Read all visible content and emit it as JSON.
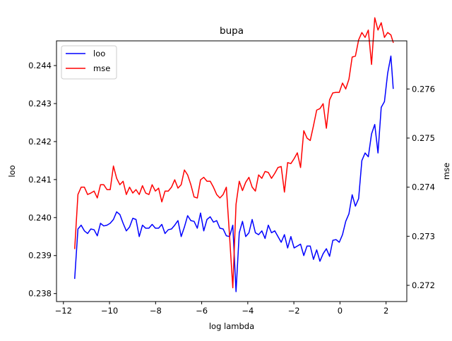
{
  "chart_data": {
    "type": "line",
    "title": "bupa",
    "xlabel": "log lambda",
    "ylabel_left": "loo",
    "ylabel_right": "mse",
    "xlim": [
      -12.3,
      2.9
    ],
    "ylim_left": [
      0.23779,
      0.24465
    ],
    "ylim_right": [
      0.27167,
      0.27698
    ],
    "x_ticks": [
      -12,
      -10,
      -8,
      -6,
      -4,
      -2,
      0,
      2
    ],
    "x_tick_labels": [
      "−12",
      "−10",
      "−8",
      "−6",
      "−4",
      "−2",
      "0",
      "2"
    ],
    "y_left_ticks": [
      0.238,
      0.239,
      0.24,
      0.241,
      0.242,
      0.243,
      0.244
    ],
    "y_left_tick_labels": [
      "0.238",
      "0.239",
      "0.240",
      "0.241",
      "0.242",
      "0.243",
      "0.244"
    ],
    "y_right_ticks": [
      0.272,
      0.273,
      0.274,
      0.275,
      0.276
    ],
    "y_right_tick_labels": [
      "0.272",
      "0.273",
      "0.274",
      "0.275",
      "0.276"
    ],
    "legend_position": "upper left",
    "series": [
      {
        "name": "loo",
        "axis": "left",
        "color": "#0000ff",
        "x": [
          -11.51,
          -11.37,
          -11.23,
          -11.09,
          -10.95,
          -10.81,
          -10.67,
          -10.53,
          -10.39,
          -10.25,
          -10.11,
          -9.97,
          -9.83,
          -9.69,
          -9.55,
          -9.41,
          -9.27,
          -9.13,
          -8.99,
          -8.85,
          -8.71,
          -8.57,
          -8.43,
          -8.29,
          -8.15,
          -8.01,
          -7.87,
          -7.73,
          -7.59,
          -7.45,
          -7.31,
          -7.17,
          -7.03,
          -6.89,
          -6.75,
          -6.61,
          -6.47,
          -6.33,
          -6.19,
          -6.05,
          -5.91,
          -5.77,
          -5.63,
          -5.49,
          -5.35,
          -5.21,
          -5.07,
          -4.93,
          -4.79,
          -4.65,
          -4.51,
          -4.37,
          -4.23,
          -4.09,
          -3.95,
          -3.81,
          -3.67,
          -3.53,
          -3.39,
          -3.25,
          -3.11,
          -2.97,
          -2.83,
          -2.69,
          -2.55,
          -2.41,
          -2.27,
          -2.13,
          -1.99,
          -1.85,
          -1.71,
          -1.57,
          -1.43,
          -1.29,
          -1.15,
          -1.01,
          -0.87,
          -0.73,
          -0.59,
          -0.45,
          -0.31,
          -0.17,
          -0.03,
          0.11,
          0.25,
          0.39,
          0.53,
          0.67,
          0.81,
          0.95,
          1.09,
          1.23,
          1.37,
          1.51,
          1.65,
          1.79,
          1.93,
          2.07,
          2.21,
          2.31
        ],
        "y": [
          0.2384,
          0.2397,
          0.2398,
          0.23965,
          0.23958,
          0.2397,
          0.23968,
          0.23952,
          0.23985,
          0.23978,
          0.2398,
          0.23985,
          0.23995,
          0.24015,
          0.24008,
          0.23985,
          0.23965,
          0.23975,
          0.23998,
          0.23995,
          0.2395,
          0.2398,
          0.23972,
          0.23972,
          0.23982,
          0.23972,
          0.23972,
          0.23982,
          0.23958,
          0.23968,
          0.2397,
          0.2398,
          0.23992,
          0.2395,
          0.23975,
          0.24005,
          0.23992,
          0.2399,
          0.23972,
          0.24012,
          0.23965,
          0.23995,
          0.24002,
          0.23988,
          0.23992,
          0.23972,
          0.2397,
          0.23952,
          0.2395,
          0.2398,
          0.23805,
          0.2396,
          0.2399,
          0.2395,
          0.2396,
          0.23995,
          0.2396,
          0.23955,
          0.23965,
          0.23945,
          0.2398,
          0.2396,
          0.23965,
          0.2395,
          0.23935,
          0.23955,
          0.2392,
          0.2395,
          0.2392,
          0.23925,
          0.2393,
          0.239,
          0.23925,
          0.23925,
          0.2389,
          0.23915,
          0.23885,
          0.23905,
          0.23918,
          0.23898,
          0.2394,
          0.23942,
          0.23935,
          0.23955,
          0.2399,
          0.2401,
          0.2406,
          0.2403,
          0.2405,
          0.2415,
          0.2417,
          0.2416,
          0.2422,
          0.24245,
          0.2417,
          0.2429,
          0.24305,
          0.2438,
          0.24425,
          0.2434
        ]
      },
      {
        "name": "mse",
        "axis": "right",
        "color": "#ff0000",
        "x": [
          -11.51,
          -11.37,
          -11.23,
          -11.09,
          -10.95,
          -10.81,
          -10.67,
          -10.53,
          -10.39,
          -10.25,
          -10.11,
          -9.97,
          -9.83,
          -9.69,
          -9.55,
          -9.41,
          -9.27,
          -9.13,
          -8.99,
          -8.85,
          -8.71,
          -8.57,
          -8.43,
          -8.29,
          -8.15,
          -8.01,
          -7.87,
          -7.73,
          -7.59,
          -7.45,
          -7.31,
          -7.17,
          -7.03,
          -6.89,
          -6.75,
          -6.61,
          -6.47,
          -6.33,
          -6.19,
          -6.05,
          -5.91,
          -5.77,
          -5.63,
          -5.49,
          -5.35,
          -5.21,
          -5.07,
          -4.93,
          -4.79,
          -4.65,
          -4.51,
          -4.37,
          -4.23,
          -4.09,
          -3.95,
          -3.81,
          -3.67,
          -3.53,
          -3.39,
          -3.25,
          -3.11,
          -2.97,
          -2.83,
          -2.69,
          -2.55,
          -2.41,
          -2.27,
          -2.13,
          -1.99,
          -1.85,
          -1.71,
          -1.57,
          -1.43,
          -1.29,
          -1.15,
          -1.01,
          -0.87,
          -0.73,
          -0.59,
          -0.45,
          -0.31,
          -0.17,
          -0.03,
          0.11,
          0.25,
          0.39,
          0.53,
          0.67,
          0.81,
          0.95,
          1.09,
          1.23,
          1.37,
          1.51,
          1.65,
          1.79,
          1.93,
          2.07,
          2.21,
          2.31
        ],
        "y": [
          0.27275,
          0.27385,
          0.274,
          0.274,
          0.27385,
          0.27388,
          0.27392,
          0.27378,
          0.27405,
          0.27405,
          0.27395,
          0.27395,
          0.27443,
          0.27418,
          0.27405,
          0.27412,
          0.27385,
          0.274,
          0.27388,
          0.27395,
          0.27385,
          0.27403,
          0.27388,
          0.27385,
          0.27405,
          0.27392,
          0.27398,
          0.2737,
          0.27392,
          0.27392,
          0.274,
          0.27415,
          0.27398,
          0.27405,
          0.27435,
          0.27425,
          0.27405,
          0.2738,
          0.27378,
          0.27415,
          0.2742,
          0.27412,
          0.27412,
          0.274,
          0.27385,
          0.27378,
          0.27385,
          0.274,
          0.273,
          0.27195,
          0.27365,
          0.27412,
          0.27393,
          0.2741,
          0.2742,
          0.274,
          0.27392,
          0.27425,
          0.27418,
          0.27432,
          0.2743,
          0.27418,
          0.27428,
          0.2744,
          0.27442,
          0.2739,
          0.2745,
          0.27448,
          0.27458,
          0.2747,
          0.2744,
          0.27515,
          0.275,
          0.27495,
          0.27525,
          0.27557,
          0.2756,
          0.2757,
          0.2752,
          0.27578,
          0.27592,
          0.27593,
          0.27593,
          0.27612,
          0.276,
          0.2762,
          0.27665,
          0.27667,
          0.277,
          0.27715,
          0.27705,
          0.2772,
          0.2765,
          0.27745,
          0.2772,
          0.27735,
          0.27705,
          0.27715,
          0.2771,
          0.27695
        ]
      }
    ]
  }
}
